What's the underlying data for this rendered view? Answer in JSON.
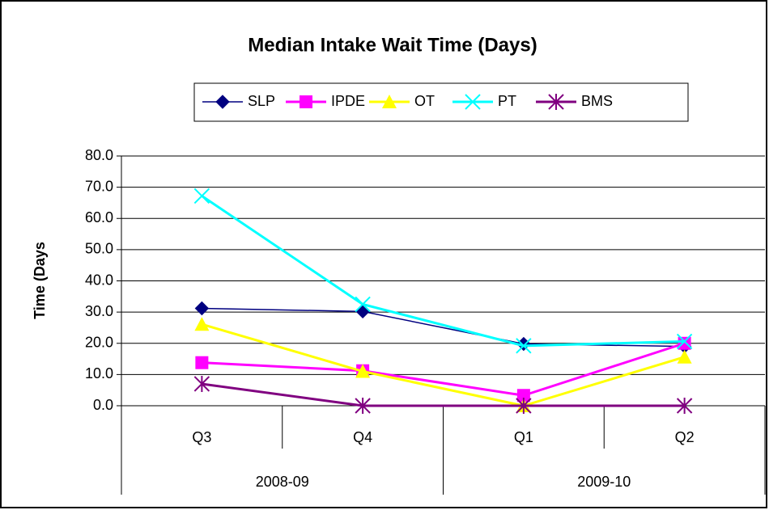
{
  "chart_data": {
    "type": "line",
    "title": "Median Intake Wait Time (Days)",
    "y_label": "Time (Days",
    "categories": [
      "Q3",
      "Q4",
      "Q1",
      "Q2"
    ],
    "groups": [
      "2008-09",
      "2009-10"
    ],
    "series": [
      {
        "name": "SLP",
        "color": "#000080",
        "marker": "diamond",
        "values": [
          31.2,
          30.2,
          19.8,
          19.0
        ]
      },
      {
        "name": "IPDE",
        "color": "#ff00ff",
        "marker": "square",
        "values": [
          13.8,
          11.2,
          3.3,
          20.0
        ]
      },
      {
        "name": "OT",
        "color": "#ffff00",
        "marker": "triangle",
        "values": [
          26.1,
          11.0,
          0.0,
          15.6
        ]
      },
      {
        "name": "PT",
        "color": "#00ffff",
        "marker": "x",
        "values": [
          67.2,
          32.5,
          19.2,
          20.6
        ]
      },
      {
        "name": "BMS",
        "color": "#800080",
        "marker": "star",
        "values": [
          7.0,
          0.0,
          0.0,
          0.0
        ]
      }
    ],
    "ylim": [
      0,
      80
    ],
    "yticks": [
      {
        "value": 0,
        "label": "0.0"
      },
      {
        "value": 10,
        "label": "10.0"
      },
      {
        "value": 20,
        "label": "20.0"
      },
      {
        "value": 30,
        "label": "30.0"
      },
      {
        "value": 40,
        "label": "40.0"
      },
      {
        "value": 50,
        "label": "50.0"
      },
      {
        "value": 60,
        "label": "60.0"
      },
      {
        "value": 70,
        "label": "70.0"
      },
      {
        "value": 80,
        "label": "80.0"
      }
    ],
    "grid": true,
    "legend": "top"
  }
}
